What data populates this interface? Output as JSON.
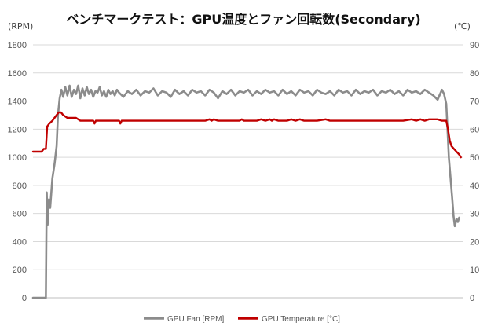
{
  "chart_data": {
    "type": "line",
    "title": "ベンチマークテスト：GPU温度とファン回転数(Secondary)",
    "y_left": {
      "label": "(RPM)",
      "range": [
        0,
        1800
      ],
      "ticks": [
        "0",
        "200",
        "400",
        "600",
        "800",
        "1000",
        "1200",
        "1400",
        "1600",
        "1800"
      ]
    },
    "y_right": {
      "label": "(℃)",
      "range": [
        0,
        90
      ],
      "ticks": [
        "0",
        "10",
        "20",
        "30",
        "40",
        "50",
        "60",
        "70",
        "80",
        "90"
      ]
    },
    "x": {
      "range": [
        0,
        100
      ]
    },
    "grid": "horizontal",
    "legend_position": "bottom",
    "series": [
      {
        "name": "GPU Fan [RPM]",
        "axis": "left",
        "color": "#8c8c8c",
        "points": [
          [
            0,
            0
          ],
          [
            2.5,
            0
          ],
          [
            3.0,
            0
          ],
          [
            3.2,
            750
          ],
          [
            3.4,
            520
          ],
          [
            3.7,
            700
          ],
          [
            4.0,
            640
          ],
          [
            4.5,
            850
          ],
          [
            5.0,
            950
          ],
          [
            5.5,
            1080
          ],
          [
            5.8,
            1300
          ],
          [
            6.2,
            1420
          ],
          [
            6.6,
            1480
          ],
          [
            7.0,
            1430
          ],
          [
            7.5,
            1500
          ],
          [
            8.0,
            1440
          ],
          [
            8.5,
            1510
          ],
          [
            9.0,
            1430
          ],
          [
            9.5,
            1480
          ],
          [
            10.0,
            1450
          ],
          [
            10.5,
            1510
          ],
          [
            11.0,
            1420
          ],
          [
            11.5,
            1490
          ],
          [
            12.0,
            1440
          ],
          [
            12.5,
            1500
          ],
          [
            13.0,
            1450
          ],
          [
            13.5,
            1480
          ],
          [
            14.0,
            1430
          ],
          [
            14.5,
            1470
          ],
          [
            15.0,
            1460
          ],
          [
            15.5,
            1500
          ],
          [
            16.0,
            1440
          ],
          [
            16.5,
            1470
          ],
          [
            17.0,
            1430
          ],
          [
            17.5,
            1480
          ],
          [
            18.0,
            1450
          ],
          [
            18.5,
            1470
          ],
          [
            19.0,
            1440
          ],
          [
            19.5,
            1480
          ],
          [
            20.0,
            1460
          ],
          [
            21.0,
            1430
          ],
          [
            22.0,
            1470
          ],
          [
            23.0,
            1450
          ],
          [
            24.0,
            1480
          ],
          [
            25.0,
            1440
          ],
          [
            26.0,
            1470
          ],
          [
            27.0,
            1460
          ],
          [
            28.0,
            1490
          ],
          [
            29.0,
            1440
          ],
          [
            30.0,
            1470
          ],
          [
            31.0,
            1460
          ],
          [
            32.0,
            1430
          ],
          [
            33.0,
            1480
          ],
          [
            34.0,
            1450
          ],
          [
            35.0,
            1470
          ],
          [
            36.0,
            1440
          ],
          [
            37.0,
            1480
          ],
          [
            38.0,
            1460
          ],
          [
            39.0,
            1470
          ],
          [
            40.0,
            1440
          ],
          [
            41.0,
            1480
          ],
          [
            42.0,
            1460
          ],
          [
            43.0,
            1420
          ],
          [
            44.0,
            1470
          ],
          [
            45.0,
            1450
          ],
          [
            46.0,
            1480
          ],
          [
            47.0,
            1440
          ],
          [
            48.0,
            1470
          ],
          [
            49.0,
            1460
          ],
          [
            50.0,
            1480
          ],
          [
            51.0,
            1440
          ],
          [
            52.0,
            1470
          ],
          [
            53.0,
            1450
          ],
          [
            54.0,
            1480
          ],
          [
            55.0,
            1460
          ],
          [
            56.0,
            1470
          ],
          [
            57.0,
            1440
          ],
          [
            58.0,
            1480
          ],
          [
            59.0,
            1450
          ],
          [
            60.0,
            1470
          ],
          [
            61.0,
            1440
          ],
          [
            62.0,
            1480
          ],
          [
            63.0,
            1460
          ],
          [
            64.0,
            1470
          ],
          [
            65.0,
            1440
          ],
          [
            66.0,
            1480
          ],
          [
            67.0,
            1460
          ],
          [
            68.0,
            1450
          ],
          [
            69.0,
            1470
          ],
          [
            70.0,
            1440
          ],
          [
            71.0,
            1480
          ],
          [
            72.0,
            1460
          ],
          [
            73.0,
            1470
          ],
          [
            74.0,
            1440
          ],
          [
            75.0,
            1480
          ],
          [
            76.0,
            1450
          ],
          [
            77.0,
            1470
          ],
          [
            78.0,
            1460
          ],
          [
            79.0,
            1480
          ],
          [
            80.0,
            1440
          ],
          [
            81.0,
            1470
          ],
          [
            82.0,
            1460
          ],
          [
            83.0,
            1480
          ],
          [
            84.0,
            1450
          ],
          [
            85.0,
            1470
          ],
          [
            86.0,
            1440
          ],
          [
            87.0,
            1480
          ],
          [
            88.0,
            1460
          ],
          [
            89.0,
            1470
          ],
          [
            90.0,
            1450
          ],
          [
            91.0,
            1480
          ],
          [
            92.0,
            1460
          ],
          [
            93.0,
            1440
          ],
          [
            94.0,
            1410
          ],
          [
            95.0,
            1480
          ],
          [
            95.5,
            1450
          ],
          [
            96.0,
            1380
          ],
          [
            96.3,
            1200
          ],
          [
            96.6,
            1000
          ],
          [
            97.0,
            850
          ],
          [
            97.4,
            700
          ],
          [
            97.7,
            580
          ],
          [
            98.0,
            510
          ],
          [
            98.4,
            560
          ],
          [
            98.7,
            540
          ],
          [
            99.0,
            570
          ]
        ]
      },
      {
        "name": "GPU Temperature [°C]",
        "axis": "right",
        "color": "#c00000",
        "points": [
          [
            0,
            52
          ],
          [
            2.0,
            52
          ],
          [
            2.5,
            53
          ],
          [
            3.0,
            53
          ],
          [
            3.3,
            61
          ],
          [
            3.8,
            62
          ],
          [
            4.5,
            63
          ],
          [
            5.0,
            64
          ],
          [
            5.5,
            65
          ],
          [
            6.0,
            66
          ],
          [
            6.5,
            66
          ],
          [
            7.0,
            65
          ],
          [
            8.0,
            64
          ],
          [
            9.0,
            64
          ],
          [
            10.0,
            64
          ],
          [
            11.0,
            63
          ],
          [
            12.0,
            63
          ],
          [
            13.0,
            63
          ],
          [
            14.0,
            63
          ],
          [
            14.3,
            62
          ],
          [
            14.6,
            63
          ],
          [
            16.0,
            63
          ],
          [
            18.0,
            63
          ],
          [
            20.0,
            63
          ],
          [
            20.3,
            62
          ],
          [
            20.6,
            63
          ],
          [
            22.0,
            63
          ],
          [
            25.0,
            63
          ],
          [
            28.0,
            63
          ],
          [
            30.0,
            63
          ],
          [
            32.0,
            63
          ],
          [
            35.0,
            63
          ],
          [
            38.0,
            63
          ],
          [
            40.0,
            63
          ],
          [
            41.0,
            63.5
          ],
          [
            41.5,
            63
          ],
          [
            42.0,
            63.5
          ],
          [
            43.0,
            63
          ],
          [
            46.0,
            63
          ],
          [
            48.0,
            63
          ],
          [
            48.5,
            63.5
          ],
          [
            49.0,
            63
          ],
          [
            52.0,
            63
          ],
          [
            53.0,
            63.5
          ],
          [
            54.0,
            63
          ],
          [
            55.0,
            63.5
          ],
          [
            55.5,
            63
          ],
          [
            56.0,
            63.5
          ],
          [
            57.0,
            63
          ],
          [
            58.0,
            63
          ],
          [
            59.0,
            63
          ],
          [
            60.0,
            63.5
          ],
          [
            61.0,
            63
          ],
          [
            62.0,
            63.5
          ],
          [
            63.0,
            63
          ],
          [
            66.0,
            63
          ],
          [
            68.0,
            63.5
          ],
          [
            69.0,
            63
          ],
          [
            72.0,
            63
          ],
          [
            75.0,
            63
          ],
          [
            78.0,
            63
          ],
          [
            80.0,
            63
          ],
          [
            82.0,
            63
          ],
          [
            84.0,
            63
          ],
          [
            86.0,
            63
          ],
          [
            88.0,
            63.5
          ],
          [
            89.0,
            63
          ],
          [
            90.0,
            63.5
          ],
          [
            91.0,
            63
          ],
          [
            92.0,
            63.5
          ],
          [
            93.0,
            63.5
          ],
          [
            94.0,
            63.5
          ],
          [
            95.0,
            63
          ],
          [
            96.0,
            63
          ],
          [
            96.4,
            60
          ],
          [
            96.8,
            56
          ],
          [
            97.2,
            54
          ],
          [
            97.8,
            53
          ],
          [
            98.4,
            52
          ],
          [
            99.0,
            51
          ],
          [
            99.4,
            50
          ]
        ]
      }
    ]
  },
  "legend": {
    "fan": {
      "label": "GPU Fan [RPM]",
      "color": "#8c8c8c"
    },
    "temp": {
      "label": "GPU Temperature [°C]",
      "color": "#c00000"
    }
  }
}
